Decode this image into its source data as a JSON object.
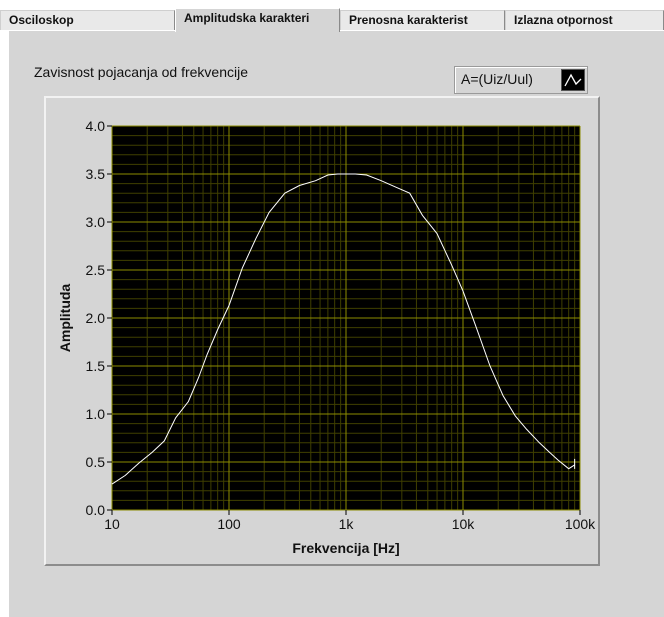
{
  "tabs": [
    {
      "label": "Osciloskop",
      "active": false
    },
    {
      "label": "Amplitudska karakteri",
      "active": true
    },
    {
      "label": "Prenosna karakterist",
      "active": false
    },
    {
      "label": "Izlazna otpornost",
      "active": false
    }
  ],
  "graph": {
    "title": "Zavisnost pojacanja od frekvencije",
    "legend_label": "A=(Uiz/Uul)",
    "legend_icon": "line-plot-icon"
  },
  "colors": {
    "plot_background": "#000000",
    "grid_major": "#8c8c00",
    "grid_minor": "#3f3f00",
    "series": "#ffffff",
    "panel": "#d5d5d5"
  },
  "chart_data": {
    "type": "line",
    "xlabel": "Frekvencija [Hz]",
    "ylabel": "Amplituda",
    "x_scale": "log",
    "xlim": [
      10,
      100000
    ],
    "ylim": [
      0,
      4
    ],
    "x_ticks": [
      10,
      100,
      1000,
      10000,
      100000
    ],
    "x_tick_labels": [
      "10",
      "100",
      "1k",
      "10k",
      "100k"
    ],
    "y_ticks": [
      0,
      0.5,
      1,
      1.5,
      2,
      2.5,
      3,
      3.5,
      4
    ],
    "y_tick_labels": [
      "0.0",
      "0.5",
      "1.0",
      "1.5",
      "2.0",
      "2.5",
      "3.0",
      "3.5",
      "4.0"
    ],
    "grid": true,
    "series": [
      {
        "name": "A=(Uiz/Uul)",
        "x": [
          10,
          13,
          17,
          22,
          28,
          35,
          45,
          55,
          65,
          80,
          100,
          130,
          170,
          220,
          300,
          400,
          550,
          700,
          850,
          1000,
          1200,
          1500,
          2000,
          2700,
          3500,
          4500,
          6000,
          8000,
          10000,
          13000,
          17000,
          22000,
          28000,
          35000,
          45000,
          55000,
          65000,
          80000,
          90000
        ],
        "y": [
          0.27,
          0.36,
          0.49,
          0.6,
          0.72,
          0.96,
          1.13,
          1.38,
          1.62,
          1.88,
          2.13,
          2.52,
          2.83,
          3.1,
          3.3,
          3.38,
          3.43,
          3.49,
          3.5,
          3.5,
          3.5,
          3.49,
          3.43,
          3.36,
          3.3,
          3.07,
          2.88,
          2.55,
          2.28,
          1.9,
          1.5,
          1.19,
          0.98,
          0.84,
          0.7,
          0.6,
          0.52,
          0.43,
          0.47
        ]
      }
    ]
  }
}
